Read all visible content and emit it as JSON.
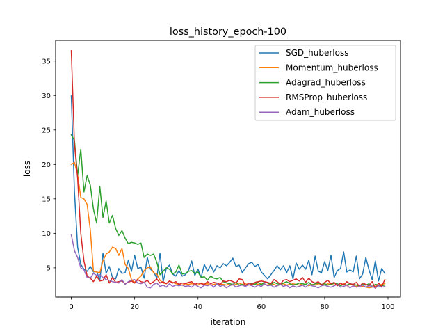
{
  "chart_data": {
    "type": "line",
    "title": "loss_history_epoch-100",
    "xlabel": "iteration",
    "ylabel": "loss",
    "xlim": [
      -4.95,
      103.95
    ],
    "ylim": [
      0.75,
      38.0
    ],
    "xticks": [
      0,
      20,
      40,
      60,
      80,
      100
    ],
    "yticks": [
      5,
      10,
      15,
      20,
      25,
      30,
      35
    ],
    "grid": false,
    "legend_position": "top-right",
    "x": [
      0,
      1,
      2,
      3,
      4,
      5,
      6,
      7,
      8,
      9,
      10,
      11,
      12,
      13,
      14,
      15,
      16,
      17,
      18,
      19,
      20,
      21,
      22,
      23,
      24,
      25,
      26,
      27,
      28,
      29,
      30,
      31,
      32,
      33,
      34,
      35,
      36,
      37,
      38,
      39,
      40,
      41,
      42,
      43,
      44,
      45,
      46,
      47,
      48,
      49,
      50,
      51,
      52,
      53,
      54,
      55,
      56,
      57,
      58,
      59,
      60,
      61,
      62,
      63,
      64,
      65,
      66,
      67,
      68,
      69,
      70,
      71,
      72,
      73,
      74,
      75,
      76,
      77,
      78,
      79,
      80,
      81,
      82,
      83,
      84,
      85,
      86,
      87,
      88,
      89,
      90,
      91,
      92,
      93,
      94,
      95,
      96,
      97,
      98,
      99
    ],
    "series": [
      {
        "name": "SGD_huberloss",
        "color": "#1f77b4",
        "values": [
          30.0,
          16.0,
          8.0,
          5.5,
          4.8,
          4.5,
          5.2,
          4.4,
          4.5,
          3.2,
          7.1,
          4.2,
          5.2,
          3.6,
          3.4,
          4.9,
          4.2,
          4.3,
          6.1,
          4.5,
          6.8,
          4.9,
          5.1,
          3.5,
          6.5,
          4.8,
          4.4,
          3.5,
          7.1,
          3.0,
          4.9,
          5.4,
          4.1,
          3.8,
          4.6,
          3.8,
          4.0,
          4.6,
          6.0,
          3.9,
          4.8,
          3.6,
          5.5,
          4.5,
          5.4,
          4.4,
          5.3,
          5.0,
          5.6,
          5.3,
          5.8,
          6.4,
          5.2,
          5.4,
          4.3,
          5.0,
          5.6,
          5.8,
          5.2,
          5.5,
          4.4,
          3.9,
          3.4,
          4.0,
          4.6,
          5.3,
          4.7,
          5.3,
          4.3,
          5.3,
          3.4,
          5.7,
          4.8,
          5.4,
          4.8,
          6.1,
          4.0,
          6.7,
          4.5,
          4.3,
          5.9,
          4.6,
          6.8,
          3.6,
          4.6,
          4.9,
          7.3,
          4.4,
          4.7,
          4.4,
          6.7,
          3.4,
          4.1,
          6.5,
          4.7,
          3.3,
          6.0,
          3.1,
          4.9,
          4.2
        ]
      },
      {
        "name": "Momentum_huberloss",
        "color": "#ff7f0e",
        "values": [
          20.0,
          20.3,
          18.5,
          15.2,
          15.0,
          14.2,
          10.5,
          4.5,
          4.4,
          4.3,
          6.0,
          7.0,
          7.3,
          8.0,
          7.8,
          6.8,
          7.8,
          5.5,
          4.9,
          3.3,
          2.9,
          3.4,
          3.8,
          4.6,
          5.0,
          5.1,
          4.3,
          4.1,
          3.2,
          2.8,
          2.7,
          3.1,
          2.9,
          2.7,
          2.6,
          2.5,
          2.7,
          2.6,
          2.7,
          2.6,
          2.5,
          2.8,
          2.6,
          2.7,
          2.5,
          2.6,
          2.7,
          2.6,
          2.6,
          2.5,
          2.7,
          2.5,
          2.6,
          2.8,
          2.6,
          2.7,
          2.5,
          2.6,
          2.7,
          2.6,
          2.8,
          2.6,
          2.5,
          2.7,
          2.6,
          2.4,
          2.6,
          2.7,
          2.5,
          2.6,
          2.7,
          2.6,
          2.5,
          2.7,
          2.6,
          2.4,
          2.6,
          2.5,
          2.7,
          2.6,
          2.5,
          2.7,
          2.6,
          2.5,
          2.6,
          2.5,
          2.7,
          2.4,
          2.6,
          2.5,
          2.3,
          2.4,
          2.3,
          2.2,
          2.1,
          2.2,
          2.3,
          2.5,
          2.6,
          2.7
        ]
      },
      {
        "name": "Adagrad_huberloss",
        "color": "#2ca02c",
        "values": [
          24.3,
          23.5,
          18.4,
          22.2,
          16.0,
          18.4,
          17.0,
          13.5,
          11.5,
          16.8,
          12.3,
          14.7,
          11.5,
          12.6,
          10.7,
          9.7,
          10.4,
          9.3,
          8.5,
          8.7,
          8.6,
          8.4,
          8.6,
          6.5,
          7.0,
          6.8,
          7.0,
          5.8,
          4.0,
          4.5,
          5.0,
          4.8,
          4.1,
          4.4,
          5.4,
          4.1,
          4.2,
          4.5,
          4.6,
          4.2,
          4.4,
          3.6,
          3.7,
          3.2,
          3.8,
          3.5,
          3.4,
          3.6,
          3.0,
          2.8,
          2.7,
          2.6,
          2.9,
          2.5,
          2.6,
          2.4,
          2.8,
          2.7,
          2.6,
          2.9,
          2.5,
          3.0,
          2.8,
          2.6,
          2.9,
          2.7,
          2.6,
          2.8,
          3.0,
          2.7,
          2.5,
          2.6,
          2.8,
          2.7,
          2.6,
          2.9,
          2.5,
          2.7,
          2.8,
          2.6,
          2.7,
          2.5,
          2.6,
          2.8,
          2.7,
          2.4,
          2.6,
          2.5,
          2.7,
          2.6,
          2.5,
          2.4,
          2.6,
          2.5,
          2.7,
          2.3,
          2.6,
          2.5,
          2.4,
          2.5
        ]
      },
      {
        "name": "RMSProp_huberloss",
        "color": "#d62728",
        "values": [
          36.5,
          23.0,
          18.0,
          10.0,
          6.0,
          3.8,
          3.5,
          3.0,
          3.8,
          3.1,
          3.2,
          4.0,
          2.8,
          3.6,
          2.9,
          3.0,
          3.1,
          2.7,
          2.9,
          3.1,
          2.8,
          3.3,
          3.0,
          2.9,
          3.2,
          2.7,
          3.0,
          3.4,
          2.8,
          3.0,
          2.7,
          3.1,
          2.8,
          3.0,
          2.6,
          2.8,
          2.7,
          2.9,
          3.0,
          2.6,
          2.8,
          2.7,
          2.6,
          3.0,
          2.7,
          2.9,
          2.8,
          2.6,
          3.1,
          3.0,
          3.2,
          3.0,
          2.8,
          3.4,
          3.3,
          2.4,
          2.8,
          2.6,
          2.9,
          3.0,
          3.1,
          3.0,
          2.9,
          2.7,
          3.3,
          3.0,
          2.6,
          3.2,
          3.3,
          3.0,
          3.2,
          3.4,
          3.1,
          3.6,
          2.9,
          3.5,
          3.0,
          2.8,
          3.0,
          2.5,
          2.9,
          3.2,
          2.7,
          2.9,
          2.4,
          2.8,
          2.5,
          3.0,
          2.7,
          2.6,
          2.9,
          2.3,
          2.8,
          2.6,
          2.4,
          3.0,
          2.0,
          2.8,
          2.3,
          3.3
        ]
      },
      {
        "name": "Adam_huberloss",
        "color": "#9467bd",
        "values": [
          9.8,
          7.5,
          6.5,
          5.0,
          4.7,
          3.6,
          3.5,
          4.2,
          3.9,
          4.0,
          3.6,
          3.3,
          3.2,
          3.0,
          2.9,
          2.8,
          3.3,
          2.6,
          3.0,
          3.2,
          3.3,
          2.8,
          2.7,
          2.9,
          2.2,
          2.1,
          2.6,
          2.8,
          2.3,
          2.5,
          2.2,
          2.7,
          2.3,
          2.5,
          2.4,
          2.5,
          2.3,
          2.4,
          2.2,
          2.6,
          2.3,
          2.1,
          2.5,
          2.4,
          2.6,
          2.2,
          2.7,
          2.3,
          2.5,
          2.1,
          2.4,
          2.6,
          2.2,
          2.4,
          2.5,
          2.3,
          2.6,
          2.4,
          2.2,
          2.5,
          2.3,
          2.7,
          2.4,
          2.5,
          2.2,
          2.4,
          2.6,
          2.3,
          2.5,
          2.1,
          2.4,
          2.2,
          2.3,
          2.5,
          2.2,
          2.6,
          2.4,
          2.3,
          2.1,
          2.4,
          2.5,
          2.3,
          2.2,
          2.4,
          2.6,
          2.2,
          2.3,
          2.5,
          2.1,
          2.4,
          2.2,
          2.3,
          2.5,
          2.2,
          2.4,
          2.3,
          2.1,
          2.4,
          2.2,
          2.3
        ]
      }
    ]
  }
}
